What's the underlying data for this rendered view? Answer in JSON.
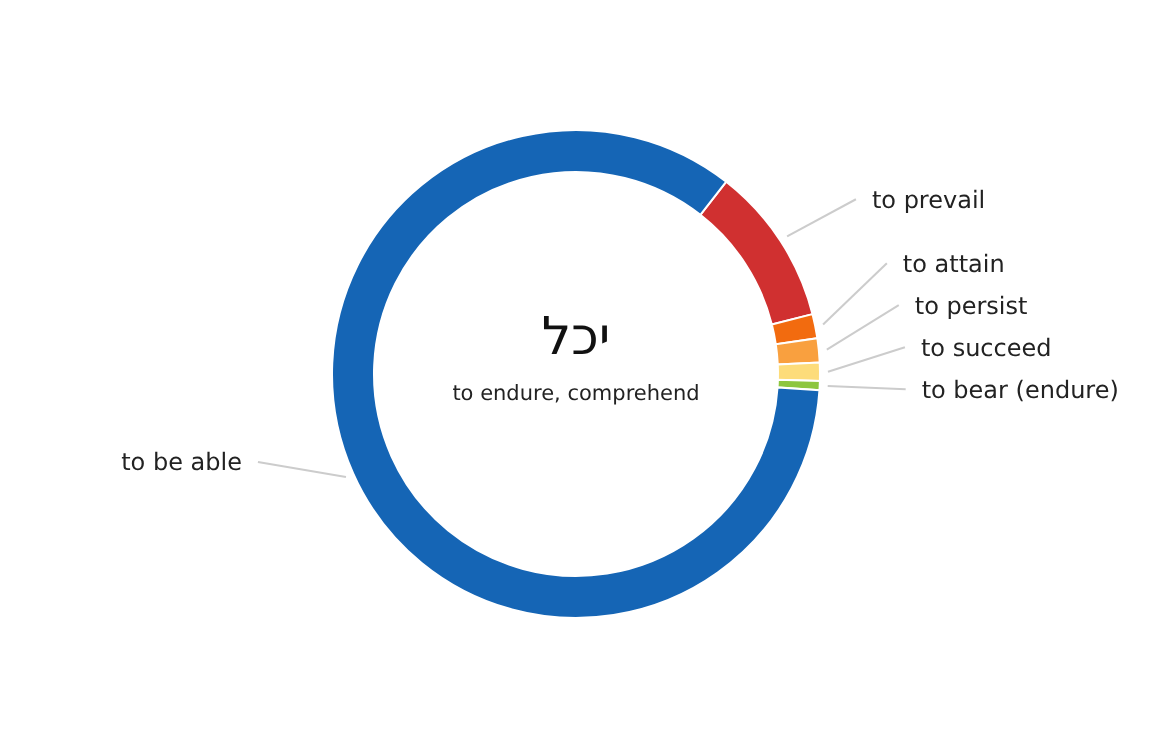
{
  "chart_data": {
    "type": "donut",
    "title": "יכל",
    "subtitle": "to endure, comprehend",
    "categories": [
      "to prevail",
      "to attain",
      "to persist",
      "to succeed",
      "to bear (endure)",
      "to be able"
    ],
    "values": [
      10.5,
      1.6,
      1.6,
      1.2,
      0.6,
      84.5
    ],
    "colors": [
      "#d03030",
      "#f26b0f",
      "#f9a03f",
      "#fddc7a",
      "#8dc63f",
      "#1565b5"
    ]
  }
}
